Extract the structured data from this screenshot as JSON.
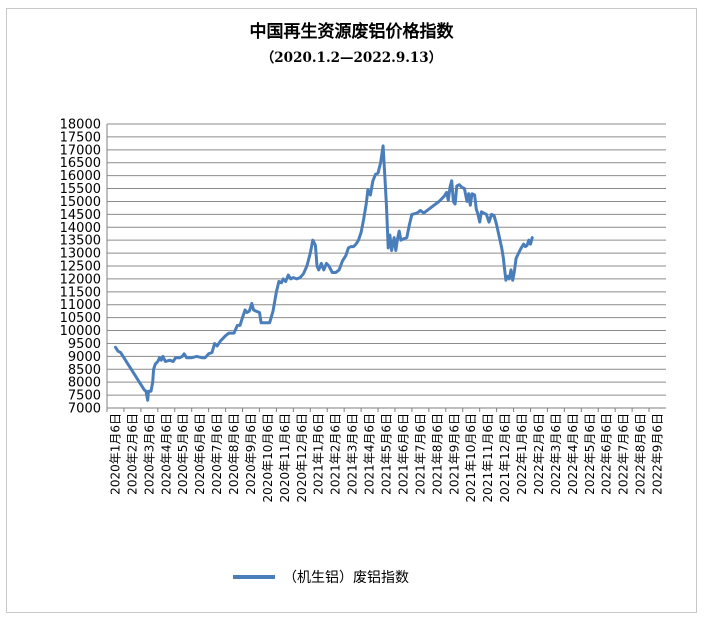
{
  "chart_data": {
    "type": "line",
    "title": "中国再生资源废铝价格指数",
    "subtitle": "（2020.1.2—2022.9.13）",
    "xlabel": "",
    "ylabel": "",
    "ylim": [
      7000,
      18000
    ],
    "y_tick_step": 500,
    "grid": true,
    "legend_position": "bottom",
    "line_color": "#4a7ebb",
    "categories": [
      "2020年1月6日",
      "2020年2月6日",
      "2020年3月6日",
      "2020年4月6日",
      "2020年5月6日",
      "2020年6月6日",
      "2020年7月6日",
      "2020年8月6日",
      "2020年9月6日",
      "2020年10月6日",
      "2020年11月6日",
      "2020年12月6日",
      "2021年1月6日",
      "2021年2月6日",
      "2021年3月6日",
      "2021年4月6日",
      "2021年5月6日",
      "2021年6月6日",
      "2021年7月6日",
      "2021年8月6日",
      "2021年9月6日",
      "2021年10月6日",
      "2021年11月6日",
      "2021年12月6日",
      "2022年1月6日",
      "2022年2月6日",
      "2022年3月6日",
      "2022年4月6日",
      "2022年5月6日",
      "2022年6月6日",
      "2022年7月6日",
      "2022年8月6日",
      "2022年9月6日"
    ],
    "series": [
      {
        "name": "（机生铝）废铝指数",
        "points": [
          [
            0.0,
            9350
          ],
          [
            0.15,
            9200
          ],
          [
            0.3,
            9150
          ],
          [
            1.7,
            7700
          ],
          [
            1.8,
            7650
          ],
          [
            1.9,
            7300
          ],
          [
            1.95,
            7650
          ],
          [
            2.1,
            7650
          ],
          [
            2.2,
            8000
          ],
          [
            2.25,
            8500
          ],
          [
            2.35,
            8700
          ],
          [
            2.5,
            8800
          ],
          [
            2.6,
            8950
          ],
          [
            2.7,
            8850
          ],
          [
            2.8,
            9000
          ],
          [
            2.95,
            8800
          ],
          [
            3.2,
            8850
          ],
          [
            3.4,
            8800
          ],
          [
            3.55,
            8950
          ],
          [
            3.8,
            8950
          ],
          [
            3.95,
            9000
          ],
          [
            4.05,
            9100
          ],
          [
            4.2,
            8950
          ],
          [
            4.5,
            8950
          ],
          [
            4.8,
            9000
          ],
          [
            5.1,
            8950
          ],
          [
            5.3,
            8950
          ],
          [
            5.5,
            9100
          ],
          [
            5.7,
            9150
          ],
          [
            5.85,
            9500
          ],
          [
            6.0,
            9400
          ],
          [
            6.2,
            9600
          ],
          [
            6.5,
            9800
          ],
          [
            6.7,
            9900
          ],
          [
            7.0,
            9900
          ],
          [
            7.2,
            10200
          ],
          [
            7.35,
            10200
          ],
          [
            7.5,
            10500
          ],
          [
            7.65,
            10800
          ],
          [
            7.75,
            10700
          ],
          [
            7.9,
            10750
          ],
          [
            8.05,
            11050
          ],
          [
            8.15,
            10800
          ],
          [
            8.3,
            10750
          ],
          [
            8.5,
            10700
          ],
          [
            8.6,
            10300
          ],
          [
            8.8,
            10300
          ],
          [
            9.1,
            10300
          ],
          [
            9.3,
            10750
          ],
          [
            9.5,
            11500
          ],
          [
            9.65,
            11900
          ],
          [
            9.8,
            11850
          ],
          [
            9.9,
            12000
          ],
          [
            10.05,
            11900
          ],
          [
            10.2,
            12150
          ],
          [
            10.35,
            12000
          ],
          [
            10.5,
            12050
          ],
          [
            10.7,
            12000
          ],
          [
            10.9,
            12050
          ],
          [
            11.1,
            12200
          ],
          [
            11.3,
            12500
          ],
          [
            11.5,
            13000
          ],
          [
            11.65,
            13500
          ],
          [
            11.8,
            13300
          ],
          [
            11.9,
            12500
          ],
          [
            12.0,
            12350
          ],
          [
            12.15,
            12600
          ],
          [
            12.3,
            12350
          ],
          [
            12.45,
            12600
          ],
          [
            12.6,
            12500
          ],
          [
            12.8,
            12250
          ],
          [
            13.0,
            12250
          ],
          [
            13.2,
            12350
          ],
          [
            13.4,
            12700
          ],
          [
            13.6,
            12900
          ],
          [
            13.75,
            13200
          ],
          [
            13.9,
            13250
          ],
          [
            14.05,
            13250
          ],
          [
            14.2,
            13350
          ],
          [
            14.35,
            13500
          ],
          [
            14.5,
            13800
          ],
          [
            14.65,
            14300
          ],
          [
            14.8,
            14900
          ],
          [
            14.9,
            15450
          ],
          [
            15.05,
            15250
          ],
          [
            15.2,
            15800
          ],
          [
            15.35,
            16050
          ],
          [
            15.5,
            16100
          ],
          [
            15.65,
            16500
          ],
          [
            15.8,
            17150
          ],
          [
            15.9,
            16000
          ],
          [
            16.0,
            14800
          ],
          [
            16.1,
            13200
          ],
          [
            16.2,
            13700
          ],
          [
            16.3,
            13100
          ],
          [
            16.45,
            13600
          ],
          [
            16.55,
            13100
          ],
          [
            16.65,
            13550
          ],
          [
            16.75,
            13850
          ],
          [
            16.85,
            13500
          ],
          [
            17.0,
            13550
          ],
          [
            17.2,
            13600
          ],
          [
            17.35,
            14100
          ],
          [
            17.5,
            14500
          ],
          [
            17.8,
            14550
          ],
          [
            18.0,
            14650
          ],
          [
            18.2,
            14550
          ],
          [
            18.5,
            14700
          ],
          [
            18.8,
            14850
          ],
          [
            19.1,
            15000
          ],
          [
            19.4,
            15200
          ],
          [
            19.55,
            15350
          ],
          [
            19.65,
            15050
          ],
          [
            19.75,
            15550
          ],
          [
            19.85,
            15800
          ],
          [
            19.95,
            15000
          ],
          [
            20.05,
            14900
          ],
          [
            20.15,
            15600
          ],
          [
            20.3,
            15650
          ],
          [
            20.45,
            15550
          ],
          [
            20.6,
            15500
          ],
          [
            20.75,
            15000
          ],
          [
            20.85,
            15300
          ],
          [
            20.95,
            14850
          ],
          [
            21.05,
            15300
          ],
          [
            21.2,
            15250
          ],
          [
            21.3,
            14700
          ],
          [
            21.4,
            14500
          ],
          [
            21.5,
            14200
          ],
          [
            21.6,
            14600
          ],
          [
            21.75,
            14550
          ],
          [
            21.9,
            14500
          ],
          [
            22.05,
            14200
          ],
          [
            22.2,
            14500
          ],
          [
            22.35,
            14450
          ],
          [
            22.5,
            14100
          ],
          [
            22.6,
            13800
          ],
          [
            22.7,
            13500
          ],
          [
            22.8,
            13200
          ],
          [
            22.9,
            12800
          ],
          [
            22.95,
            12500
          ],
          [
            23.05,
            11950
          ],
          [
            23.15,
            12100
          ],
          [
            23.25,
            12000
          ],
          [
            23.35,
            12350
          ],
          [
            23.45,
            11950
          ],
          [
            23.55,
            12300
          ],
          [
            23.65,
            12800
          ],
          [
            23.8,
            13000
          ],
          [
            23.95,
            13200
          ],
          [
            24.1,
            13350
          ],
          [
            24.2,
            13250
          ],
          [
            24.3,
            13300
          ],
          [
            24.4,
            13500
          ],
          [
            24.5,
            13350
          ],
          [
            24.6,
            13600
          ]
        ]
      }
    ]
  }
}
